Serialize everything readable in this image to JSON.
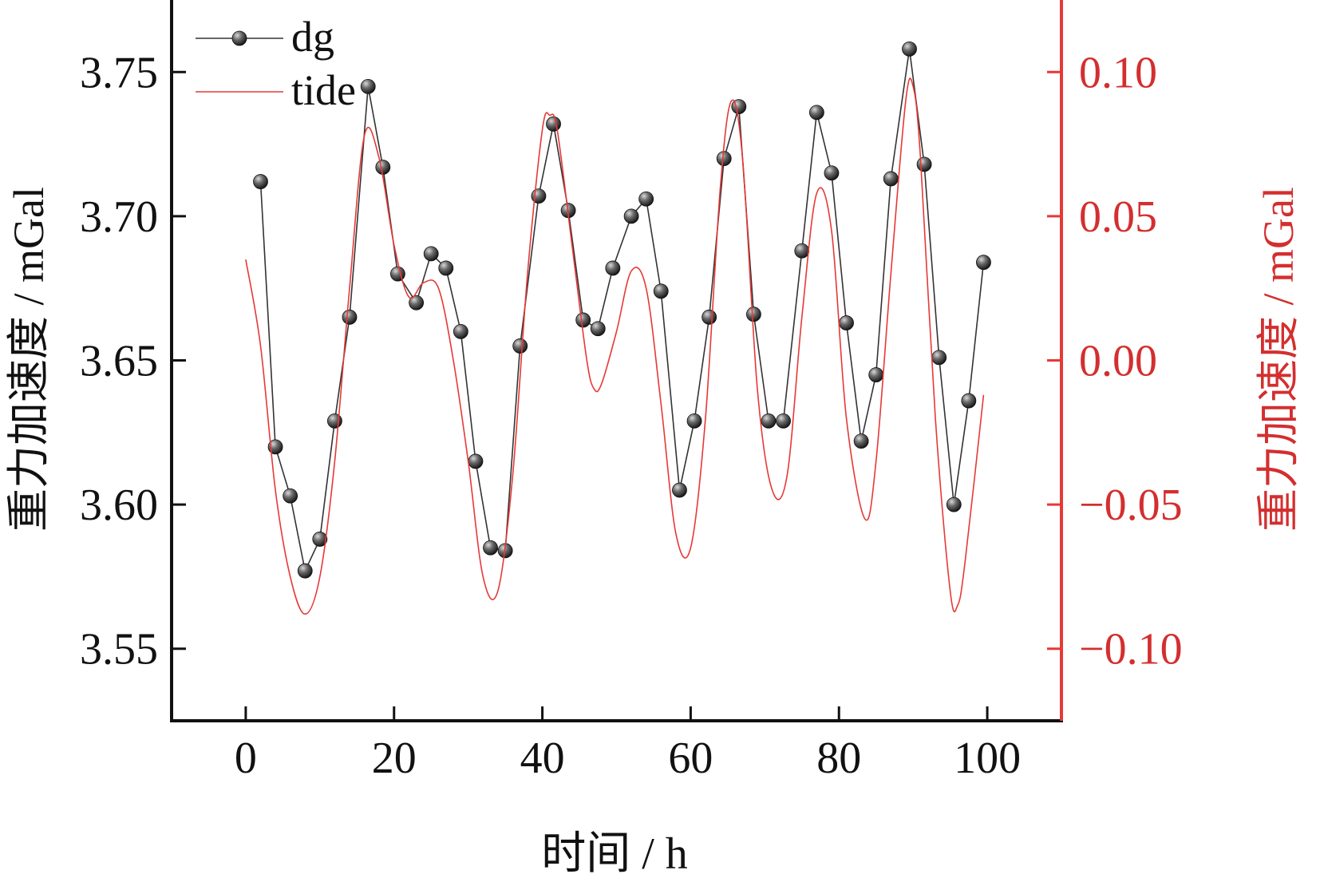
{
  "chart_data": {
    "type": "line",
    "xlabel": "时间 / h",
    "ylabel_left": "重力加速度 / mGal",
    "ylabel_right": "重力加速度 / mGal",
    "xlim": [
      -10,
      110
    ],
    "ylim_left": [
      3.525,
      3.775
    ],
    "ylim_right": [
      -0.125,
      0.125
    ],
    "xticks": [
      0,
      20,
      40,
      60,
      80,
      100
    ],
    "xtick_labels": [
      "0",
      "20",
      "40",
      "60",
      "80",
      "100"
    ],
    "yticks_left": [
      3.55,
      3.6,
      3.65,
      3.7,
      3.75
    ],
    "ytick_labels_left": [
      "3.55",
      "3.60",
      "3.65",
      "3.70",
      "3.75"
    ],
    "yticks_right": [
      -0.1,
      -0.05,
      0.0,
      0.05,
      0.1
    ],
    "ytick_labels_right": [
      "−0.10",
      "−0.05",
      "0.00",
      "0.05",
      "0.10"
    ],
    "grid": false,
    "legend_position": "top-left",
    "series": [
      {
        "name": "dg",
        "axis": "left",
        "style": "line+markers",
        "color": "#333333",
        "x": [
          2,
          4,
          6,
          8,
          10,
          12,
          14,
          16.5,
          18.5,
          20.5,
          23,
          25,
          27,
          29,
          31,
          33,
          35,
          37,
          39.5,
          41.5,
          43.5,
          45.5,
          47.5,
          49.5,
          52,
          54,
          56,
          58.5,
          60.5,
          62.5,
          64.5,
          66.5,
          68.5,
          70.5,
          72.5,
          75,
          77,
          79,
          81,
          83,
          85,
          87,
          89.5,
          91.5,
          93.5,
          95.5,
          97.5,
          99.5
        ],
        "values": [
          3.712,
          3.62,
          3.603,
          3.577,
          3.588,
          3.629,
          3.665,
          3.745,
          3.717,
          3.68,
          3.67,
          3.687,
          3.682,
          3.66,
          3.615,
          3.585,
          3.584,
          3.655,
          3.707,
          3.732,
          3.702,
          3.664,
          3.661,
          3.682,
          3.7,
          3.706,
          3.674,
          3.605,
          3.629,
          3.665,
          3.72,
          3.738,
          3.666,
          3.629,
          3.629,
          3.688,
          3.736,
          3.715,
          3.663,
          3.622,
          3.645,
          3.713,
          3.758,
          3.718,
          3.651,
          3.6,
          3.636,
          3.684
        ]
      },
      {
        "name": "tide",
        "axis": "right",
        "style": "line",
        "color": "#e53935",
        "x": [
          0,
          2,
          4,
          6,
          8,
          10,
          12,
          14,
          16,
          18,
          20,
          22,
          24,
          26,
          28,
          30,
          32,
          34,
          36,
          38,
          40,
          41,
          42,
          44,
          46,
          47,
          48,
          50,
          52,
          54,
          56,
          58,
          60,
          62,
          64,
          65.5,
          67,
          69,
          71,
          73,
          75,
          77,
          79,
          81,
          83.5,
          85,
          87,
          89,
          90,
          91,
          93,
          95,
          96,
          97,
          99.5
        ],
        "values": [
          0.035,
          0.005,
          -0.045,
          -0.075,
          -0.088,
          -0.075,
          -0.035,
          0.025,
          0.078,
          0.07,
          0.04,
          0.022,
          0.027,
          0.025,
          0.0,
          -0.035,
          -0.075,
          -0.08,
          -0.04,
          0.03,
          0.08,
          0.085,
          0.08,
          0.04,
          0.0,
          -0.01,
          -0.008,
          0.01,
          0.031,
          0.025,
          -0.015,
          -0.06,
          -0.065,
          -0.02,
          0.06,
          0.09,
          0.07,
          -0.01,
          -0.045,
          -0.04,
          0.015,
          0.058,
          0.045,
          -0.02,
          -0.055,
          -0.035,
          0.03,
          0.09,
          0.095,
          0.07,
          -0.02,
          -0.08,
          -0.085,
          -0.07,
          -0.012
        ]
      }
    ]
  }
}
